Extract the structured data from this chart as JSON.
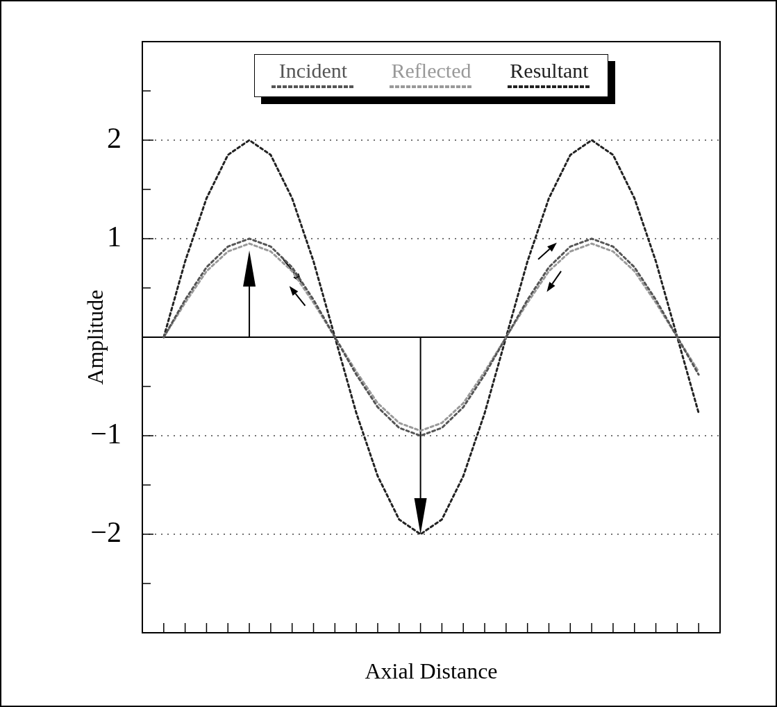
{
  "chart_data": {
    "type": "line",
    "xlabel": "Axial Distance",
    "ylabel": "Amplitude",
    "categories": [
      null,
      null,
      null,
      null,
      null,
      null,
      null,
      null,
      null,
      null,
      null,
      null,
      null,
      null,
      null,
      null,
      null,
      null,
      null,
      null,
      null,
      null,
      null,
      null,
      null,
      null,
      null,
      null
    ],
    "series": [
      {
        "name": "Incident",
        "color": "#555555",
        "values": [
          null,
          0,
          0.38,
          0.71,
          0.92,
          1,
          0.92,
          0.71,
          0.38,
          0,
          -0.38,
          -0.71,
          -0.92,
          -1,
          -0.92,
          -0.71,
          -0.38,
          0,
          0.38,
          0.71,
          0.92,
          1,
          0.92,
          0.71,
          0.38,
          0,
          -0.38,
          null
        ]
      },
      {
        "name": "Reflected",
        "color": "#999999",
        "values": [
          null,
          0,
          0.35,
          0.67,
          0.87,
          0.95,
          0.87,
          0.67,
          0.35,
          0,
          -0.35,
          -0.67,
          -0.87,
          -0.95,
          -0.87,
          -0.67,
          -0.35,
          0,
          0.35,
          0.67,
          0.87,
          0.95,
          0.87,
          0.67,
          0.35,
          0,
          -0.35,
          null
        ]
      },
      {
        "name": "Resultant",
        "color": "#222222",
        "values": [
          null,
          0,
          0.77,
          1.41,
          1.85,
          2,
          1.85,
          1.41,
          0.77,
          0,
          -0.77,
          -1.41,
          -1.85,
          -2,
          -1.85,
          -1.41,
          -0.77,
          0,
          0.77,
          1.41,
          1.85,
          2,
          1.85,
          1.41,
          0.77,
          0,
          -0.77,
          null
        ]
      }
    ],
    "ylim": [
      -3,
      3
    ],
    "yticks": [
      {
        "value": -2.5,
        "label": null
      },
      {
        "value": -2,
        "label": "−2"
      },
      {
        "value": -1.5,
        "label": null
      },
      {
        "value": -1,
        "label": "−1"
      },
      {
        "value": -0.5,
        "label": null
      },
      {
        "value": 0,
        "label": null
      },
      {
        "value": 0.5,
        "label": null
      },
      1,
      {
        "value": 1.5,
        "label": null
      },
      2,
      {
        "value": 2.5,
        "label": null
      }
    ],
    "ref_lines": [
      {
        "axis": "y",
        "value": 0,
        "color": "#000000",
        "line_style": "solid"
      }
    ],
    "grid": "y",
    "legend": "top",
    "line_style": "dotted",
    "tick_labels": "y"
  }
}
